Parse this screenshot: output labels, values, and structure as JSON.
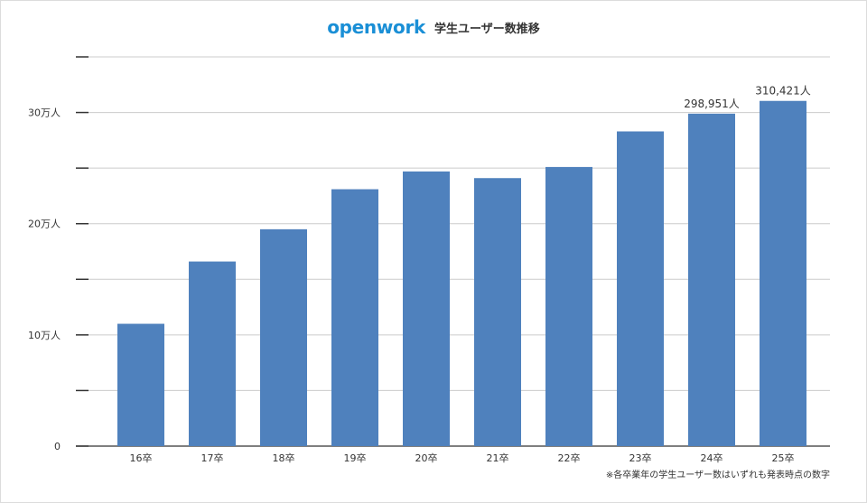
{
  "header": {
    "brand": "openwork",
    "title": "学生ユーザー数推移"
  },
  "colors": {
    "brand": "#1a8fd6",
    "bar": "#4f81bd",
    "grid": "#cccccc",
    "axis": "#333333"
  },
  "footnote": "※各卒業年の学生ユーザー数はいずれも発表時点の数字",
  "chart_data": {
    "type": "bar",
    "categories": [
      "16卒",
      "17卒",
      "18卒",
      "19卒",
      "20卒",
      "21卒",
      "22卒",
      "23卒",
      "24卒",
      "25卒"
    ],
    "values": [
      110000,
      166000,
      195000,
      231000,
      247000,
      241000,
      251000,
      283000,
      298951,
      310421
    ],
    "data_labels": [
      "",
      "",
      "",
      "",
      "",
      "",
      "",
      "",
      "298,951人",
      "310,421人"
    ],
    "title": "学生ユーザー数推移",
    "xlabel": "",
    "ylabel": "",
    "ylim": [
      0,
      350000
    ],
    "major_ticks": [
      0,
      100000,
      200000,
      300000
    ],
    "minor_ticks": [
      50000,
      150000,
      250000,
      350000
    ],
    "ytick_labels": [
      "0",
      "10万人",
      "20万人",
      "30万人"
    ],
    "grid": true,
    "legend": "none"
  }
}
